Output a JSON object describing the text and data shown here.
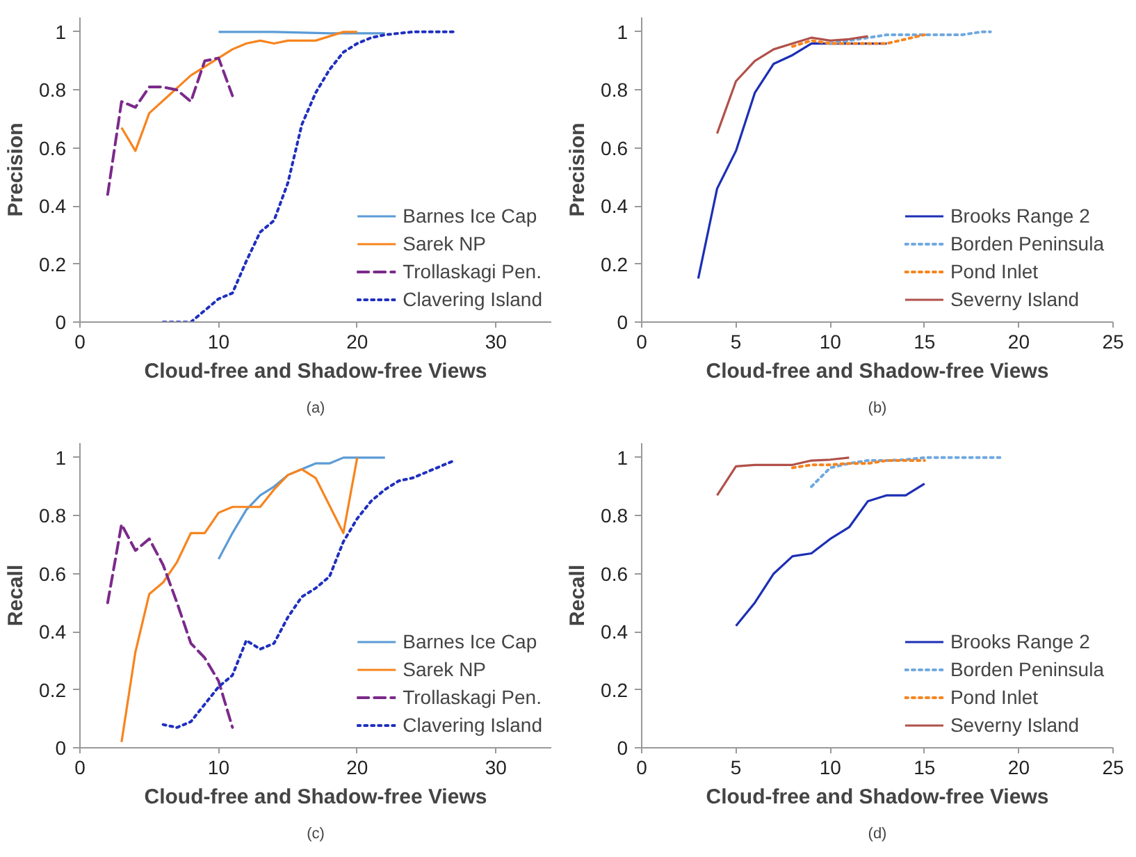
{
  "chart_data": [
    {
      "type": "line",
      "xlabel": "Cloud-free and Shadow-free Views",
      "ylabel": "Precision",
      "annotations": [
        "(a)"
      ],
      "xlim": [
        0,
        34
      ],
      "xticks": [
        0,
        10,
        20,
        30
      ],
      "ylim": [
        0,
        1.05
      ],
      "yticks": [
        0,
        0.2,
        0.4,
        0.6,
        0.8,
        1
      ],
      "grid": false,
      "legend": "bottom right",
      "marker": "none",
      "series": [
        {
          "name": "Barnes Ice Cap",
          "color": "#5b9bd5",
          "line_style": "solid",
          "x": [
            10,
            14,
            18,
            20,
            22
          ],
          "values": [
            1,
            1,
            0.995,
            0.995,
            0.995
          ]
        },
        {
          "name": "Sarek NP",
          "color": "#f7841e",
          "line_style": "solid",
          "x": [
            3,
            4,
            5,
            8,
            10,
            11,
            12,
            13,
            14,
            15,
            17,
            19,
            20
          ],
          "values": [
            0.67,
            0.59,
            0.72,
            0.85,
            0.91,
            0.94,
            0.96,
            0.97,
            0.96,
            0.97,
            0.97,
            1,
            1
          ]
        },
        {
          "name": "Trollaskagi Pen.",
          "color": "#7b2a8a",
          "line_style": "dashed",
          "x": [
            2,
            3,
            4,
            5,
            6,
            7,
            8,
            9,
            10,
            11
          ],
          "values": [
            0.44,
            0.76,
            0.74,
            0.81,
            0.81,
            0.8,
            0.76,
            0.9,
            0.91,
            0.78
          ]
        },
        {
          "name": "Clavering Island",
          "color": "#1f2fbf",
          "line_style": "dotted",
          "x": [
            6,
            7,
            8,
            9,
            10,
            11,
            12,
            13,
            14,
            15,
            16,
            17,
            18,
            19,
            20,
            21,
            22,
            23,
            24,
            25,
            27
          ],
          "values": [
            0,
            0,
            0,
            0.04,
            0.08,
            0.1,
            0.21,
            0.31,
            0.35,
            0.48,
            0.68,
            0.79,
            0.87,
            0.93,
            0.96,
            0.98,
            0.99,
            0.995,
            1,
            1,
            1
          ]
        }
      ]
    },
    {
      "type": "line",
      "xlabel": "Cloud-free and Shadow-free Views",
      "ylabel": "Precision",
      "annotations": [
        "(b)"
      ],
      "xlim": [
        0,
        25
      ],
      "xticks": [
        0,
        5,
        10,
        15,
        20,
        25
      ],
      "ylim": [
        0,
        1.05
      ],
      "yticks": [
        0,
        0.2,
        0.4,
        0.6,
        0.8,
        1
      ],
      "grid": false,
      "legend": "bottom right",
      "marker": "none",
      "series": [
        {
          "name": "Brooks Range 2",
          "color": "#1c2fb5",
          "line_style": "solid",
          "x": [
            3,
            4,
            5,
            6,
            7,
            8,
            9,
            10,
            11,
            12,
            13
          ],
          "values": [
            0.15,
            0.46,
            0.59,
            0.79,
            0.89,
            0.92,
            0.96,
            0.96,
            0.96,
            0.96,
            0.96
          ]
        },
        {
          "name": "Borden Peninsula",
          "color": "#6fa8e0",
          "line_style": "dotted",
          "x": [
            10,
            11,
            12,
            13,
            14,
            15,
            16,
            17,
            18,
            18.5
          ],
          "values": [
            0.96,
            0.97,
            0.98,
            0.99,
            0.99,
            0.99,
            0.99,
            0.99,
            1,
            1
          ]
        },
        {
          "name": "Pond Inlet",
          "color": "#f7841e",
          "line_style": "dotted",
          "x": [
            8,
            9,
            10,
            11,
            12,
            13,
            14,
            15
          ],
          "values": [
            0.95,
            0.97,
            0.96,
            0.96,
            0.96,
            0.96,
            0.975,
            0.99
          ]
        },
        {
          "name": "Severny Island",
          "color": "#b0514a",
          "line_style": "solid",
          "x": [
            4,
            5,
            6,
            7,
            8,
            9,
            10,
            11,
            12
          ],
          "values": [
            0.65,
            0.83,
            0.9,
            0.94,
            0.96,
            0.98,
            0.97,
            0.975,
            0.985
          ]
        }
      ]
    },
    {
      "type": "line",
      "xlabel": "Cloud-free and Shadow-free Views",
      "ylabel": "Recall",
      "annotations": [
        "(c)"
      ],
      "xlim": [
        0,
        34
      ],
      "xticks": [
        0,
        10,
        20,
        30
      ],
      "ylim": [
        0,
        1.05
      ],
      "yticks": [
        0,
        0.2,
        0.4,
        0.6,
        0.8,
        1
      ],
      "grid": false,
      "legend": "bottom right",
      "marker": "none",
      "series": [
        {
          "name": "Barnes Ice Cap",
          "color": "#5b9bd5",
          "line_style": "solid",
          "x": [
            10,
            11,
            12,
            13,
            14,
            15,
            16,
            17,
            18,
            19,
            20,
            22
          ],
          "values": [
            0.65,
            0.74,
            0.82,
            0.87,
            0.9,
            0.94,
            0.96,
            0.98,
            0.98,
            1,
            1,
            1
          ]
        },
        {
          "name": "Sarek NP",
          "color": "#f7841e",
          "line_style": "solid",
          "x": [
            3,
            4,
            5,
            6,
            7,
            8,
            9,
            10,
            11,
            12,
            13,
            14,
            15,
            16,
            17,
            19,
            20
          ],
          "values": [
            0.02,
            0.33,
            0.53,
            0.57,
            0.64,
            0.74,
            0.74,
            0.81,
            0.83,
            0.83,
            0.83,
            0.89,
            0.94,
            0.96,
            0.93,
            0.74,
            1
          ]
        },
        {
          "name": "Trollaskagi Pen.",
          "color": "#7b2a8a",
          "line_style": "dashed",
          "x": [
            2,
            3,
            4,
            5,
            6,
            7,
            8,
            9,
            10,
            11
          ],
          "values": [
            0.5,
            0.77,
            0.68,
            0.72,
            0.63,
            0.5,
            0.36,
            0.31,
            0.23,
            0.07
          ]
        },
        {
          "name": "Clavering Island",
          "color": "#1f2fbf",
          "line_style": "dotted",
          "x": [
            6,
            7,
            8,
            9,
            10,
            11,
            12,
            13,
            14,
            15,
            16,
            17,
            18,
            19,
            20,
            21,
            22,
            23,
            24,
            25,
            26,
            27
          ],
          "values": [
            0.08,
            0.07,
            0.09,
            0.15,
            0.21,
            0.25,
            0.37,
            0.34,
            0.36,
            0.45,
            0.52,
            0.55,
            0.59,
            0.71,
            0.79,
            0.85,
            0.89,
            0.92,
            0.93,
            0.95,
            0.97,
            0.99
          ]
        }
      ]
    },
    {
      "type": "line",
      "xlabel": "Cloud-free and Shadow-free Views",
      "ylabel": "Recall",
      "annotations": [
        "(d)"
      ],
      "xlim": [
        0,
        25
      ],
      "xticks": [
        0,
        5,
        10,
        15,
        20,
        25
      ],
      "ylim": [
        0,
        1.05
      ],
      "yticks": [
        0,
        0.2,
        0.4,
        0.6,
        0.8,
        1
      ],
      "grid": false,
      "legend": "bottom right",
      "marker": "none",
      "series": [
        {
          "name": "Brooks Range 2",
          "color": "#1c2fb5",
          "line_style": "solid",
          "x": [
            5,
            6,
            7,
            8,
            9,
            10,
            11,
            12,
            13,
            14,
            15
          ],
          "values": [
            0.42,
            0.5,
            0.6,
            0.66,
            0.67,
            0.72,
            0.76,
            0.85,
            0.87,
            0.87,
            0.91
          ]
        },
        {
          "name": "Borden Peninsula",
          "color": "#6fa8e0",
          "line_style": "dotted",
          "x": [
            9,
            10,
            11,
            12,
            13,
            14,
            15,
            16,
            17,
            18,
            19
          ],
          "values": [
            0.9,
            0.965,
            0.98,
            0.99,
            0.99,
            0.993,
            1,
            1,
            1,
            1,
            1
          ]
        },
        {
          "name": "Pond Inlet",
          "color": "#f7841e",
          "line_style": "dotted",
          "x": [
            8,
            9,
            10,
            11,
            12,
            13,
            14,
            15
          ],
          "values": [
            0.965,
            0.975,
            0.975,
            0.98,
            0.98,
            0.99,
            0.99,
            0.99
          ]
        },
        {
          "name": "Severny Island",
          "color": "#b0514a",
          "line_style": "solid",
          "x": [
            4,
            5,
            6,
            7,
            8,
            9,
            10,
            11
          ],
          "values": [
            0.87,
            0.97,
            0.975,
            0.975,
            0.975,
            0.99,
            0.993,
            1
          ]
        }
      ]
    }
  ]
}
